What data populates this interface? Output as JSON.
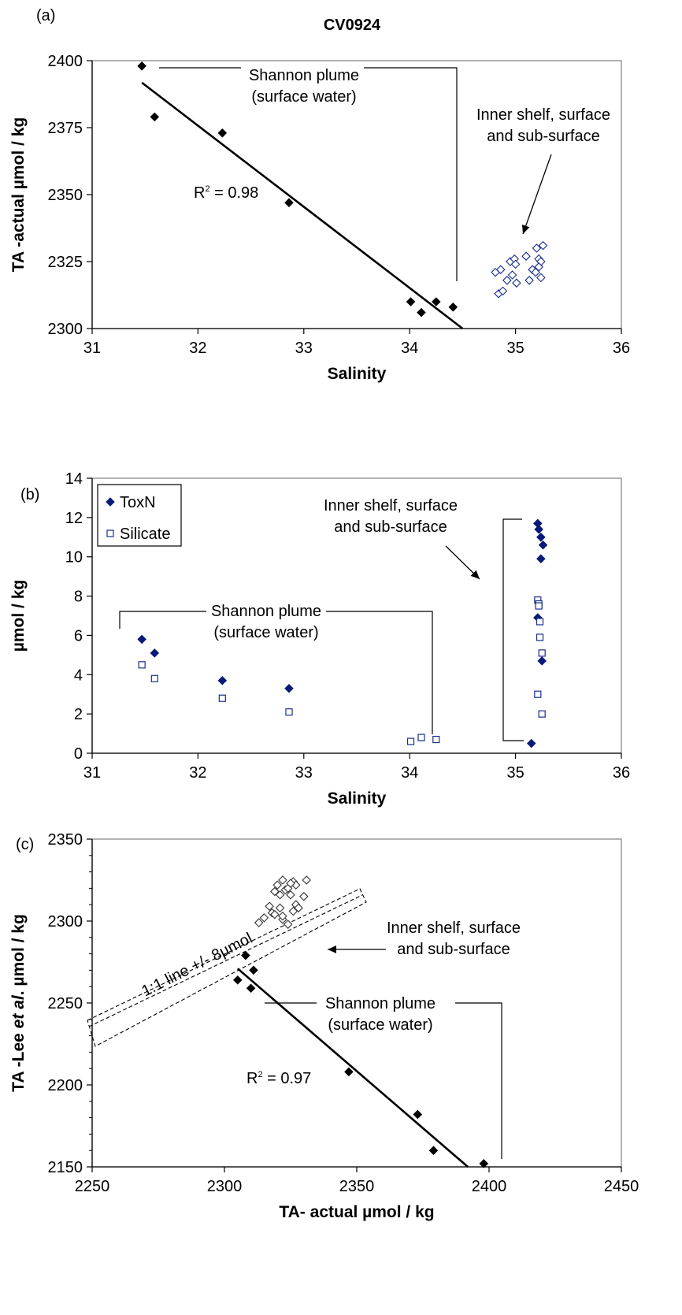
{
  "chart_data": [
    {
      "type": "scatter",
      "panel_label": "(a)",
      "title": "CV0924",
      "xlabel": "Salinity",
      "ylabel": "TA -actual µmol / kg",
      "xlim": [
        31,
        36
      ],
      "ylim": [
        2300,
        2400
      ],
      "xticks": [
        "31",
        "32",
        "33",
        "34",
        "35",
        "36"
      ],
      "yticks": [
        "2300",
        "2325",
        "2350",
        "2375",
        "2400"
      ],
      "grid": false,
      "series": [
        {
          "marker": "filled-diamond",
          "color": "#000000",
          "x": [
            31.47,
            31.59,
            32.23,
            32.86,
            34.01,
            34.11,
            34.25,
            34.41
          ],
          "y": [
            2398,
            2379,
            2373,
            2347,
            2310,
            2306,
            2310,
            2308
          ]
        },
        {
          "marker": "open-diamond",
          "color": "#1a2d8c",
          "x": [
            34.81,
            34.86,
            34.84,
            34.88,
            34.92,
            34.95,
            34.97,
            34.99,
            35.01,
            35.0,
            35.1,
            35.13,
            35.16,
            35.19,
            35.2,
            35.22,
            35.24,
            35.22,
            35.26,
            35.24
          ],
          "y": [
            2321,
            2322,
            2313,
            2314,
            2318,
            2325,
            2320,
            2326,
            2317,
            2324,
            2327,
            2318,
            2322,
            2321,
            2330,
            2326,
            2325,
            2323,
            2331,
            2319
          ]
        }
      ],
      "trendline": {
        "x": [
          31.47,
          34.5
        ],
        "y": [
          2391.8,
          2300
        ]
      },
      "annotations": [
        {
          "text": "R² = 0.98",
          "r_base": "R",
          "r_sup": "2",
          "r_rest": " = 0.98",
          "x": 32.05,
          "y": 2350
        },
        {
          "lines": [
            "Shannon plume",
            "(surface water)"
          ],
          "x": 33.5,
          "y": 2395
        },
        {
          "lines": [
            "Inner shelf, surface",
            "and sub-surface"
          ],
          "x": 35.33,
          "y": 2380
        }
      ]
    },
    {
      "type": "scatter",
      "panel_label": "(b)",
      "title": "",
      "xlabel": "Salinity",
      "ylabel": "µmol / kg",
      "xlim": [
        31,
        36
      ],
      "ylim": [
        0,
        14
      ],
      "xticks": [
        "31",
        "32",
        "33",
        "34",
        "35",
        "36"
      ],
      "yticks": [
        "0",
        "2",
        "4",
        "6",
        "8",
        "10",
        "12",
        "14"
      ],
      "grid": false,
      "legend": {
        "placement": "top-left",
        "entries": [
          "ToxN",
          "Silicate"
        ]
      },
      "series": [
        {
          "name": "ToxN",
          "marker": "filled-diamond",
          "color": "#0a1a78",
          "x": [
            31.47,
            31.59,
            32.23,
            32.86,
            35.15,
            35.21,
            35.22,
            35.24,
            35.26,
            35.24,
            35.21,
            35.25
          ],
          "y": [
            5.8,
            5.1,
            3.7,
            3.3,
            0.5,
            11.7,
            11.4,
            11.0,
            10.6,
            9.9,
            6.9,
            4.7
          ]
        },
        {
          "name": "Silicate",
          "marker": "open-square",
          "color": "#1a2d8c",
          "x": [
            31.47,
            31.59,
            32.23,
            32.86,
            34.01,
            34.11,
            34.25,
            35.21,
            35.22,
            35.22,
            35.23,
            35.23,
            35.25,
            35.21,
            35.25
          ],
          "y": [
            4.5,
            3.8,
            2.8,
            2.1,
            0.6,
            0.8,
            0.7,
            7.8,
            7.6,
            7.5,
            6.7,
            5.9,
            5.1,
            3.0,
            2.0
          ]
        }
      ],
      "annotations": [
        {
          "lines": [
            "Shannon plume",
            "(surface water)"
          ],
          "x": 32.75,
          "y": 6.4
        },
        {
          "lines": [
            "Inner shelf, surface",
            "and sub-surface"
          ],
          "x": 34.3,
          "y": 12.0
        }
      ]
    },
    {
      "type": "scatter",
      "panel_label": "(c)",
      "title": "",
      "xlabel": "TA- actual µmol / kg",
      "ylabel_parts": [
        "TA -Lee ",
        "et al",
        ". µmol / kg"
      ],
      "xlim": [
        2250,
        2450
      ],
      "ylim": [
        2150,
        2350
      ],
      "xticks": [
        "2250",
        "2300",
        "2350",
        "2400",
        "2450"
      ],
      "yticks": [
        "2150",
        "2200",
        "2250",
        "2300",
        "2350"
      ],
      "grid": false,
      "series": [
        {
          "marker": "filled-diamond",
          "color": "#000000",
          "x": [
            2305,
            2308,
            2310,
            2311,
            2347,
            2373,
            2379,
            2398
          ],
          "y": [
            2264,
            2279,
            2259,
            2270,
            2208,
            2182,
            2160,
            2152
          ]
        },
        {
          "marker": "open-diamond",
          "color": "#333333",
          "x": [
            2313,
            2315,
            2317,
            2318,
            2319,
            2320,
            2321,
            2322,
            2322,
            2323,
            2324,
            2324,
            2325,
            2326,
            2326,
            2327,
            2327,
            2328,
            2330,
            2331,
            2319,
            2321,
            2322,
            2325
          ],
          "y": [
            2299,
            2302,
            2309,
            2305,
            2318,
            2322,
            2308,
            2325,
            2301,
            2319,
            2298,
            2320,
            2316,
            2324,
            2306,
            2310,
            2322,
            2308,
            2315,
            2325,
            2304,
            2316,
            2303,
            2323
          ]
        }
      ],
      "trendline": {
        "x": [
          2305,
          2392
        ],
        "y": [
          2271,
          2150
        ]
      },
      "reference_band": {
        "label": "1:1 line +/- 8µmol"
      },
      "annotations": [
        {
          "text": "R² = 0.97",
          "r_base": "R",
          "r_sup": "2",
          "r_rest": " = 0.97",
          "x": 2322,
          "y": 2225
        },
        {
          "lines": [
            "Shannon plume",
            "(surface water)"
          ],
          "x": 2374,
          "y": 2272
        },
        {
          "lines": [
            "Inner shelf, surface",
            "and sub-surface"
          ],
          "x": 2397,
          "y": 2324
        },
        {
          "text": "1:1 line +/- 8µmol"
        }
      ]
    }
  ]
}
